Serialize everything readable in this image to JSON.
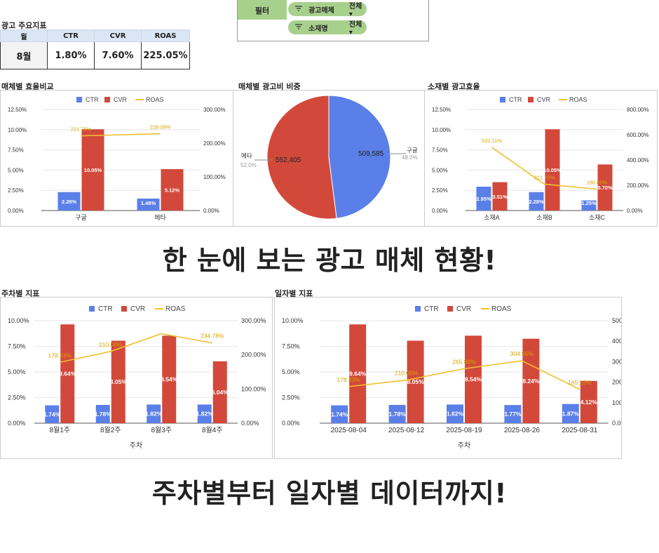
{
  "kpi": {
    "title": "광고 주요지표",
    "headers": [
      "월",
      "CTR",
      "CVR",
      "ROAS"
    ],
    "values": [
      "8월",
      "1.80%",
      "7.60%",
      "225.05%"
    ]
  },
  "filter": {
    "label": "필터",
    "chips": [
      {
        "name": "광고매체",
        "value": "전체 ▾",
        "icon": "filter-icon"
      },
      {
        "name": "소재명",
        "value": "전체 ▾",
        "icon": "filter-icon"
      }
    ]
  },
  "panels": {
    "media_efficiency": "매체별 효율비교",
    "media_spend_share": "매체별 광고비 비중",
    "creative_efficiency": "소재별 광고효율",
    "weekly": "주차별 지표",
    "daily": "일자별 지표"
  },
  "headlines": {
    "top": "한 눈에 보는 광고 매체 현황!",
    "bottom": "주차별부터 일자별 데이터까지!"
  },
  "colors": {
    "ctr": "#5b7fe8",
    "cvr": "#d2493b",
    "roas": "#f0c02f",
    "filter_green": "#a8d08d",
    "header_blue": "#dbe6f4"
  },
  "chart_data": [
    {
      "type": "bar",
      "categories": [
        "구글",
        "메타"
      ],
      "series": [
        {
          "name": "CTR",
          "values": [
            2.28,
            1.48
          ],
          "labels": [
            "2.28%",
            "1.48%"
          ]
        },
        {
          "name": "CVR",
          "values": [
            10.05,
            5.12
          ],
          "labels": [
            "10.05%",
            "5.12%"
          ]
        },
        {
          "name": "ROAS",
          "type": "line",
          "axis": "right",
          "values": [
            221.75,
            228.09
          ],
          "labels": [
            "221.75%",
            "228.09%"
          ]
        }
      ],
      "yticks": [
        "12.50%",
        "10.00%",
        "7.50%",
        "5.00%",
        "2.50%",
        "0.00%"
      ],
      "y2ticks": [
        "300.00%",
        "200.00%",
        "100.00%",
        "0.00%"
      ],
      "ylim": [
        0,
        12.5
      ],
      "y2lim": [
        0,
        300
      ],
      "xlabel": "",
      "legend": "top"
    },
    {
      "type": "pie",
      "slices": [
        {
          "label": "메타",
          "value": 552405,
          "value_label": "552,405",
          "pct": "52.0%"
        },
        {
          "label": "구글",
          "value": 509585,
          "value_label": "509,585",
          "pct": "48.0%"
        }
      ]
    },
    {
      "type": "bar",
      "categories": [
        "소재A",
        "소재B",
        "소재C"
      ],
      "series": [
        {
          "name": "CTR",
          "values": [
            2.95,
            2.28,
            1.25
          ],
          "labels": [
            "2.95%",
            "2.28%",
            "1.25%"
          ]
        },
        {
          "name": "CVR",
          "values": [
            3.51,
            10.05,
            5.7
          ],
          "labels": [
            "3.51%",
            "10.05%",
            "5.70%"
          ]
        },
        {
          "name": "ROAS",
          "type": "line",
          "axis": "right",
          "values": [
            532.11,
            221.75,
            180.0
          ],
          "labels": [
            "532.11%",
            "221.75%",
            "180.00%"
          ]
        }
      ],
      "yticks": [
        "12.50%",
        "10.00%",
        "7.50%",
        "5.00%",
        "2.50%",
        "0.00%"
      ],
      "y2ticks": [
        "800.00%",
        "600.00%",
        "400.00%",
        "200.00%",
        "0.00%"
      ],
      "ylim": [
        0,
        12.5
      ],
      "y2lim": [
        0,
        850
      ],
      "xlabel": "",
      "legend": "top"
    },
    {
      "type": "bar",
      "categories": [
        "8월1주",
        "8월2주",
        "8월3주",
        "8월4주"
      ],
      "series": [
        {
          "name": "CTR",
          "values": [
            1.74,
            1.78,
            1.82,
            1.82
          ],
          "labels": [
            "1.74%",
            "1.78%",
            "1.82%",
            "1.82%"
          ]
        },
        {
          "name": "CVR",
          "values": [
            9.64,
            8.05,
            8.54,
            6.04
          ],
          "labels": [
            "9.64%",
            "8.05%",
            "8.54%",
            "6.04%"
          ]
        },
        {
          "name": "ROAS",
          "type": "line",
          "axis": "right",
          "values": [
            178.23,
            210.0,
            262.0,
            234.78
          ],
          "labels": [
            "178.23%",
            "210.00%",
            "",
            "234.78%"
          ]
        }
      ],
      "yticks": [
        "10.00%",
        "7.50%",
        "5.00%",
        "2.50%",
        "0.00%"
      ],
      "y2ticks": [
        "300.00%",
        "200.00%",
        "100.00%",
        "0.00%"
      ],
      "ylim": [
        0,
        10
      ],
      "y2lim": [
        0,
        300
      ],
      "xlabel": "주차",
      "legend": "top"
    },
    {
      "type": "bar",
      "categories": [
        "2025-08-04",
        "2025-08-12",
        "2025-08-19",
        "2025-08-26",
        "2025-08-31"
      ],
      "series": [
        {
          "name": "CTR",
          "values": [
            1.74,
            1.78,
            1.82,
            1.77,
            1.87
          ],
          "labels": [
            "1.74%",
            "1.78%",
            "1.82%",
            "1.77%",
            "1.87%"
          ]
        },
        {
          "name": "CVR",
          "values": [
            9.64,
            8.05,
            8.54,
            8.24,
            4.12
          ],
          "labels": [
            "9.64%",
            "8.05%",
            "8.54%",
            "8.24%",
            "4.12%"
          ]
        },
        {
          "name": "ROAS",
          "type": "line",
          "axis": "right",
          "values": [
            178.23,
            210.0,
            265.8,
            304.55,
            165.22
          ],
          "labels": [
            "178.23%",
            "210.00%",
            "265.80%",
            "304.55%",
            "165.22%"
          ]
        }
      ],
      "yticks": [
        "10.00%",
        "7.50%",
        "5.00%",
        "2.50%",
        "0.00%"
      ],
      "y2ticks": [
        "500.00%",
        "400.00%",
        "300.00%",
        "200.00%",
        "100.00%",
        "0.00%"
      ],
      "ylim": [
        0,
        10
      ],
      "y2lim": [
        0,
        500
      ],
      "xlabel": "주차",
      "legend": "top"
    }
  ]
}
